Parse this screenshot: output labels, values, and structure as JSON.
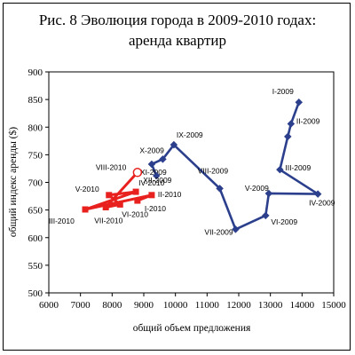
{
  "chart_data": {
    "type": "scatter",
    "title": "Рис. 8 Эволюция города в 2009-2010 годах:",
    "subtitle": "аренда квартир",
    "xlabel": "общий объем предложения",
    "ylabel": "общий индекс аренды ($)",
    "xlim": [
      6000,
      15000
    ],
    "ylim": [
      500,
      900
    ],
    "xticks": [
      "6000",
      "7000",
      "8000",
      "9000",
      "10000",
      "11000",
      "12000",
      "13000",
      "14000",
      "15000"
    ],
    "yticks": [
      "500",
      "550",
      "600",
      "650",
      "700",
      "750",
      "800",
      "850",
      "900"
    ],
    "grid": false,
    "legend": "none",
    "colors": {
      "series_2009": "#2B3F8C",
      "series_2010": "#E8211E"
    },
    "series": [
      {
        "points": [
          {
            "label": "I-2009",
            "x": 13900,
            "y": 845
          },
          {
            "label": "II-2009",
            "x": 13650,
            "y": 806
          },
          {
            "label": "",
            "x": 13550,
            "y": 783
          },
          {
            "label": "III-2009",
            "x": 13300,
            "y": 723
          },
          {
            "label": "IV-2009",
            "x": 14500,
            "y": 679
          },
          {
            "label": "V-2009",
            "x": 12950,
            "y": 680
          },
          {
            "label": "VI-2009",
            "x": 12850,
            "y": 640
          },
          {
            "label": "VII-2009",
            "x": 11900,
            "y": 615
          },
          {
            "label": "VIII-2009",
            "x": 11400,
            "y": 689
          },
          {
            "label": "IX-2009",
            "x": 9950,
            "y": 768
          },
          {
            "label": "X-2009",
            "x": 9600,
            "y": 742
          },
          {
            "label": "XI-2009",
            "x": 9250,
            "y": 733
          },
          {
            "label": "XII-2009",
            "x": 9400,
            "y": 712
          }
        ]
      },
      {
        "points": [
          {
            "label": "I-2010",
            "x": 8800,
            "y": 667
          },
          {
            "label": "II-2010",
            "x": 9250,
            "y": 677
          },
          {
            "label": "III-2010",
            "x": 7150,
            "y": 651
          },
          {
            "label": "IV-2010",
            "x": 8750,
            "y": 683
          },
          {
            "label": "V-2010",
            "x": 7900,
            "y": 677
          },
          {
            "label": "VI-2010",
            "x": 8250,
            "y": 660
          },
          {
            "label": "VII-2010",
            "x": 7800,
            "y": 655
          },
          {
            "label": "VIII-2010",
            "x": 8800,
            "y": 718
          }
        ]
      }
    ]
  }
}
